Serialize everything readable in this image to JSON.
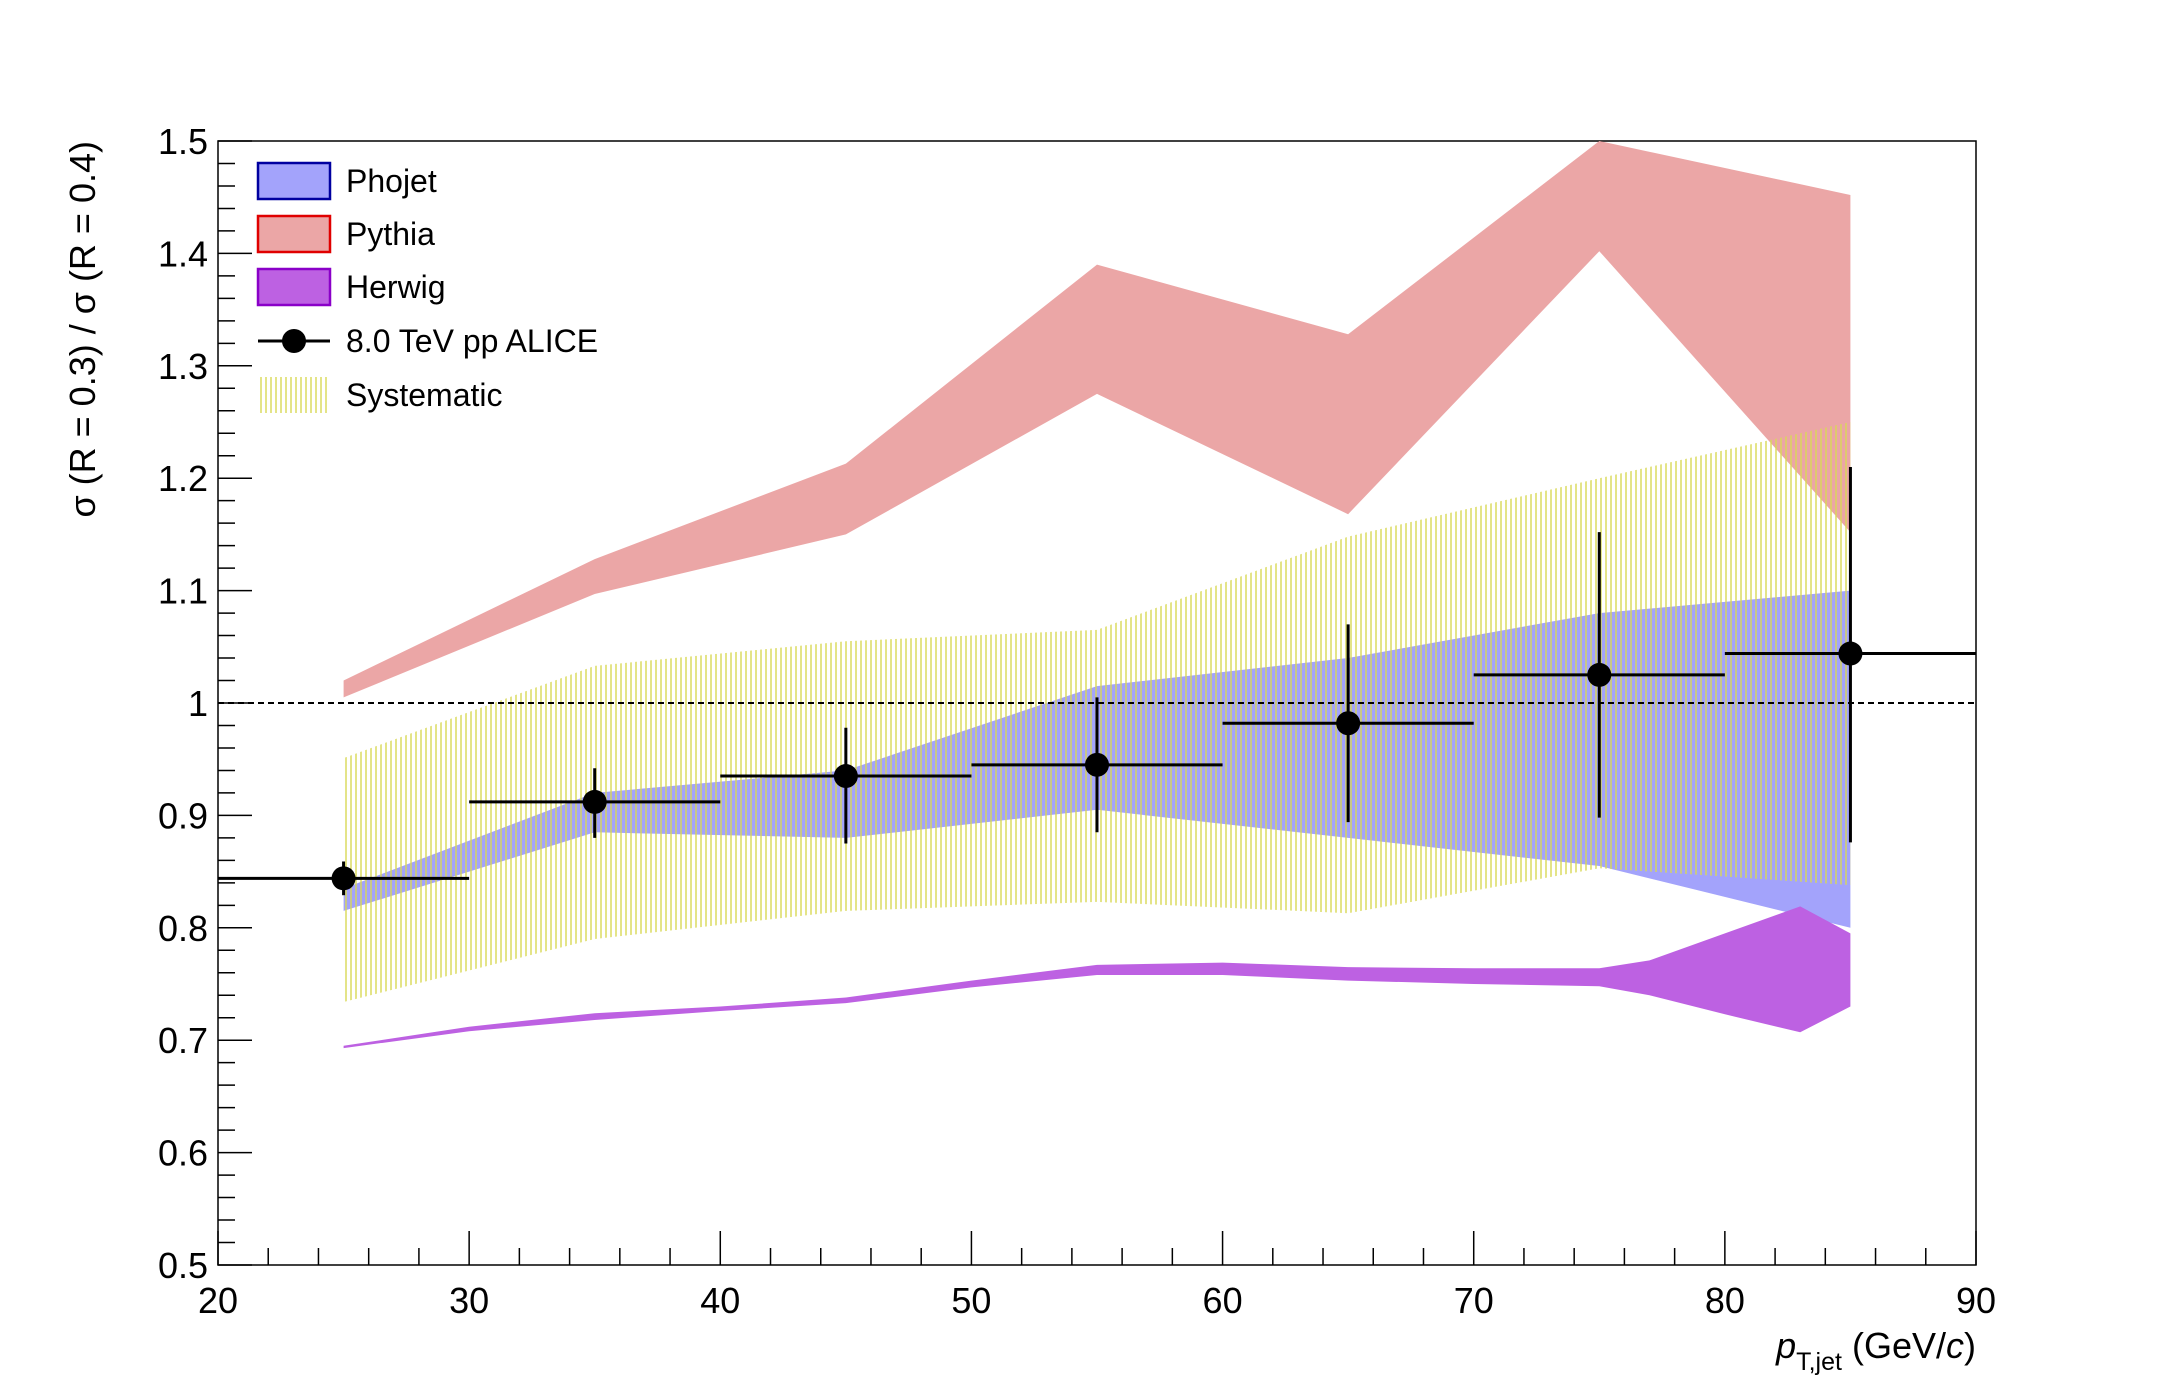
{
  "chart_data": {
    "type": "line",
    "title": "",
    "xlabel": {
      "var": "p",
      "sub": "T,jet",
      "unit_pre": " (GeV/",
      "unit_var": "c",
      "unit_post": ")"
    },
    "ylabel": "σ (R = 0.3) / σ (R = 0.4)",
    "xlim": [
      20,
      90
    ],
    "ylim": [
      0.5,
      1.5
    ],
    "xticks": [
      "20",
      "30",
      "40",
      "50",
      "60",
      "70",
      "80",
      "90"
    ],
    "yticks": [
      "0.5",
      "0.6",
      "0.7",
      "0.8",
      "0.9",
      "1",
      "1.1",
      "1.2",
      "1.3",
      "1.4",
      "1.5"
    ],
    "reference_line": 1.0,
    "legend_position": "top-left",
    "colors": {
      "phojet_fill": "#a3a3fb",
      "phojet_line": "#0000a0",
      "pythia_fill": "#eba6a6",
      "pythia_line": "#e00000",
      "herwig_fill": "#bd61e2",
      "herwig_line": "#8a00c8",
      "systematic": "#d8d855",
      "data": "#000000"
    },
    "series": [
      {
        "name": "Phojet",
        "kind": "band",
        "x": [
          25,
          35,
          45,
          55,
          65,
          75,
          85
        ],
        "low": [
          0.815,
          0.885,
          0.88,
          0.905,
          0.88,
          0.855,
          0.8
        ],
        "high": [
          0.835,
          0.92,
          0.94,
          1.015,
          1.04,
          1.08,
          1.1
        ]
      },
      {
        "name": "Pythia",
        "kind": "band",
        "x": [
          25,
          35,
          45,
          55,
          65,
          75,
          85
        ],
        "low": [
          1.005,
          1.097,
          1.15,
          1.275,
          1.168,
          1.402,
          1.152
        ],
        "high": [
          1.02,
          1.128,
          1.213,
          1.39,
          1.328,
          1.5,
          1.452
        ]
      },
      {
        "name": "Herwig",
        "kind": "band",
        "x": [
          25,
          30,
          35,
          40,
          45,
          50,
          55,
          60,
          65,
          70,
          75,
          77,
          80,
          83,
          85
        ],
        "low": [
          0.693,
          0.708,
          0.718,
          0.726,
          0.733,
          0.747,
          0.758,
          0.758,
          0.753,
          0.75,
          0.748,
          0.74,
          0.723,
          0.707,
          0.73
        ],
        "high": [
          0.695,
          0.712,
          0.724,
          0.73,
          0.738,
          0.753,
          0.767,
          0.769,
          0.765,
          0.764,
          0.764,
          0.771,
          0.795,
          0.819,
          0.795
        ]
      },
      {
        "name": "8.0 TeV pp ALICE",
        "kind": "points",
        "x": [
          25,
          35,
          45,
          55,
          65,
          75,
          85
        ],
        "xerr": [
          5,
          5,
          5,
          5,
          5,
          5,
          5
        ],
        "y": [
          0.844,
          0.912,
          0.935,
          0.945,
          0.982,
          1.025,
          1.044
        ],
        "yerr_low": [
          0.015,
          0.032,
          0.06,
          0.06,
          0.088,
          0.127,
          0.168
        ],
        "yerr_high": [
          0.015,
          0.03,
          0.043,
          0.06,
          0.088,
          0.127,
          0.166
        ]
      },
      {
        "name": "Systematic",
        "kind": "band",
        "x": [
          25,
          35,
          45,
          55,
          65,
          75,
          85
        ],
        "low": [
          0.734,
          0.79,
          0.815,
          0.823,
          0.813,
          0.853,
          0.838
        ],
        "high": [
          0.951,
          1.033,
          1.055,
          1.065,
          1.148,
          1.2,
          1.25
        ]
      }
    ]
  }
}
